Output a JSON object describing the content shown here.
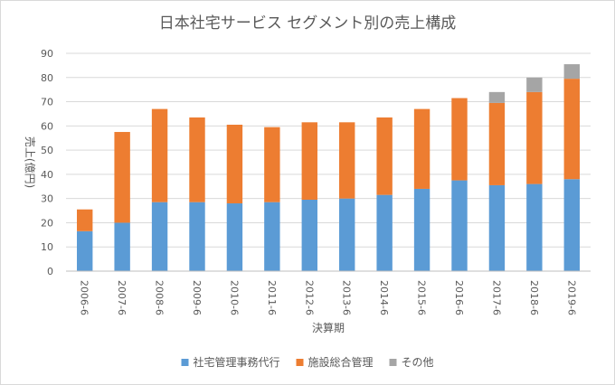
{
  "chart_data": {
    "type": "bar",
    "stacked": true,
    "title": "日本社宅サービス セグメント別の売上構成",
    "xlabel": "決算期",
    "ylabel": "売上(億円)",
    "ylim": [
      0,
      90
    ],
    "yticks": [
      0,
      10,
      20,
      30,
      40,
      50,
      60,
      70,
      80,
      90
    ],
    "grid": true,
    "legend": "bottom",
    "categories": [
      "2006-6",
      "2007-6",
      "2008-6",
      "2009-6",
      "2010-6",
      "2011-6",
      "2012-6",
      "2013-6",
      "2014-6",
      "2015-6",
      "2016-6",
      "2017-6",
      "2018-6",
      "2019-6"
    ],
    "series": [
      {
        "name": "社宅管理事務代行",
        "color": "#5b9bd5",
        "values": [
          16.5,
          20,
          28.5,
          28.5,
          28,
          28.5,
          29.5,
          30,
          31.5,
          34,
          37.5,
          35.5,
          36,
          38
        ]
      },
      {
        "name": "施設総合管理",
        "color": "#ed7d31",
        "values": [
          9,
          37.5,
          38.5,
          35,
          32.5,
          31,
          32,
          31.5,
          32,
          33,
          34,
          34,
          38,
          41.5
        ]
      },
      {
        "name": "その他",
        "color": "#a5a5a5",
        "values": [
          0,
          0,
          0,
          0,
          0,
          0,
          0,
          0,
          0,
          0,
          0,
          4.5,
          6,
          6
        ]
      }
    ]
  }
}
